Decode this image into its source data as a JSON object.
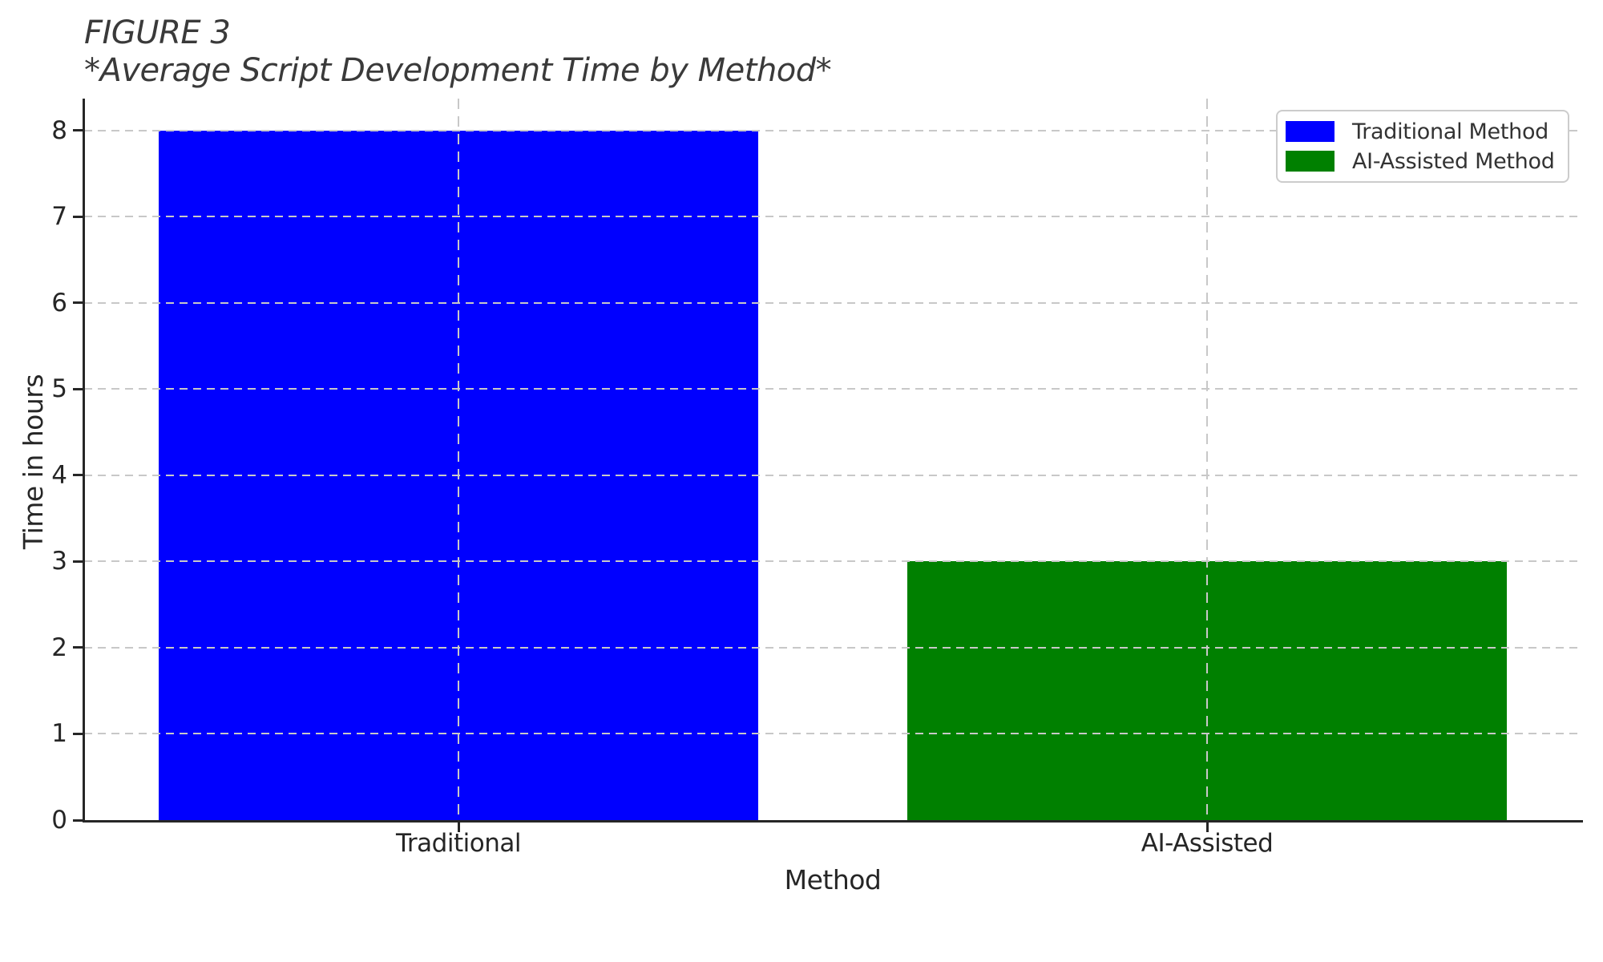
{
  "title": {
    "line1": "FIGURE 3",
    "line2": "*Average Script Development Time by Method*"
  },
  "chart_data": {
    "type": "bar",
    "categories": [
      "Traditional",
      "AI-Assisted"
    ],
    "values": [
      8,
      3
    ],
    "bar_colors": [
      "#0000ff",
      "#008000"
    ],
    "title": "*Average Script Development Time by Method*",
    "figure_label": "FIGURE 3",
    "xlabel": "Method",
    "ylabel": "Time in hours",
    "yticks": [
      0,
      1,
      2,
      3,
      4,
      5,
      6,
      7,
      8
    ],
    "ylim": [
      0,
      8.37
    ],
    "bar_width_fraction": 0.8,
    "grid": "dashed",
    "grid_color": "#c8c8c8",
    "legend": {
      "position": "upper right",
      "items": [
        {
          "label": "Traditional Method",
          "color": "#0000ff"
        },
        {
          "label": "AI-Assisted Method",
          "color": "#008000"
        }
      ]
    }
  }
}
